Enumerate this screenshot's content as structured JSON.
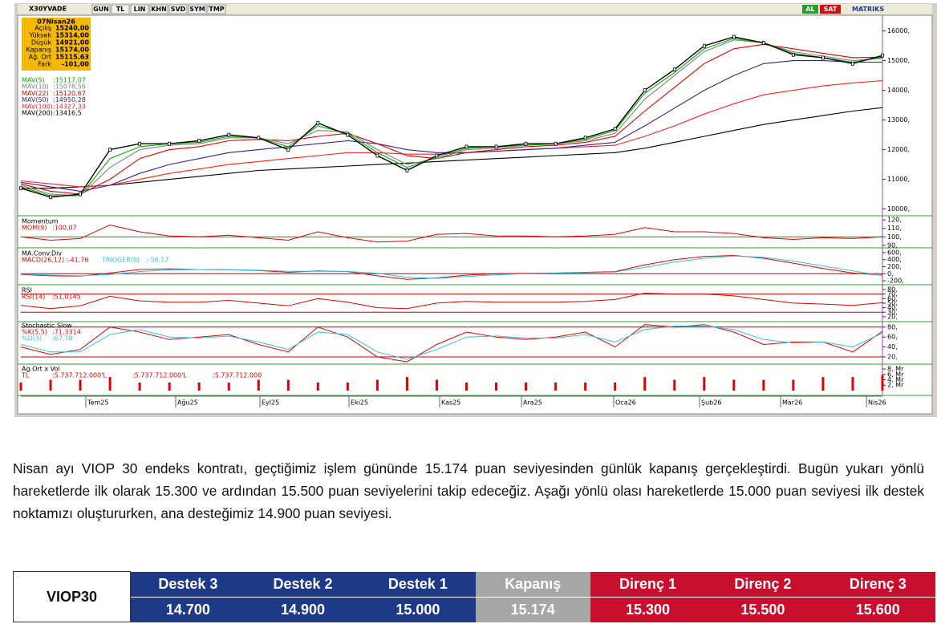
{
  "toolbar": {
    "symbol": "X30YVADE",
    "buttons": [
      "GUN",
      "TL",
      "LIN",
      "KHN",
      "SVD",
      "SYM",
      "TMP"
    ],
    "al": "AL",
    "sat": "SAT",
    "brand": "MATRIKS"
  },
  "info": {
    "date": "07Nisan26",
    "rows": [
      [
        "Açılış",
        "15240,00"
      ],
      [
        "Yüksek",
        "15314,00"
      ],
      [
        "Düşük",
        "14921,00"
      ],
      [
        "Kapanış",
        "15174,00"
      ],
      [
        "Ağ. Ort",
        "15115,63"
      ],
      [
        "Fark",
        "-101,00"
      ]
    ]
  },
  "chart_data": {
    "type": "line",
    "ylim": [
      9800,
      16450
    ],
    "yticks": [
      {
        "value": 16000,
        "label": "16000,"
      },
      {
        "value": 15000,
        "label": "15000,"
      },
      {
        "value": 14000,
        "label": "14000,"
      },
      {
        "value": 13000,
        "label": "13000,"
      },
      {
        "value": 12000,
        "label": "12000,"
      },
      {
        "value": 11000,
        "label": "11000,"
      },
      {
        "value": 10000,
        "label": "10000,"
      }
    ],
    "x_labels": [
      "Tem25",
      "Ağu25",
      "Eyl25",
      "Eki25",
      "Kas25",
      "Ara25",
      "Oca26",
      "Şub26",
      "Mar26",
      "Nis26"
    ],
    "candles": {
      "color": "#000000",
      "values": [
        10700,
        10400,
        10500,
        12000,
        12200,
        12200,
        12300,
        12500,
        12400,
        12000,
        12900,
        12500,
        11800,
        11300,
        11800,
        12100,
        12100,
        12200,
        12200,
        12400,
        12700,
        14000,
        14700,
        15500,
        15800,
        15600,
        15200,
        15100,
        14900,
        15174
      ]
    },
    "series": [
      {
        "name": "MAV(5)",
        "value_label": ":15117,07",
        "color": "#00b000",
        "values": [
          10750,
          10450,
          10450,
          11700,
          12100,
          12200,
          12250,
          12450,
          12400,
          12100,
          12800,
          12550,
          11900,
          11400,
          11750,
          12050,
          12100,
          12150,
          12200,
          12350,
          12650,
          13900,
          14600,
          15400,
          15750,
          15600,
          15250,
          15100,
          14950,
          15117
        ]
      },
      {
        "name": "MAV(10)",
        "value_label": ":15078,56",
        "color": "#808080",
        "values": [
          10800,
          10500,
          10450,
          11400,
          12000,
          12150,
          12200,
          12400,
          12400,
          12200,
          12650,
          12600,
          12000,
          11500,
          11700,
          12000,
          12050,
          12150,
          12200,
          12300,
          12550,
          13700,
          14500,
          15300,
          15700,
          15600,
          15300,
          15150,
          15000,
          15079
        ]
      },
      {
        "name": "MAV(22)",
        "value_label": ":15120,67",
        "color": "#e00000",
        "values": [
          10850,
          10600,
          10500,
          11000,
          11700,
          12000,
          12100,
          12300,
          12350,
          12300,
          12450,
          12550,
          12200,
          11800,
          11700,
          11900,
          12000,
          12100,
          12150,
          12250,
          12450,
          13300,
          14100,
          14900,
          15400,
          15550,
          15400,
          15250,
          15100,
          15121
        ]
      },
      {
        "name": "MAV(50)",
        "value_label": ":14950,28",
        "color": "#3a1f8f",
        "values": [
          10900,
          10750,
          10600,
          10800,
          11200,
          11500,
          11700,
          11900,
          12000,
          12100,
          12200,
          12300,
          12200,
          12000,
          11900,
          11900,
          11950,
          12000,
          12050,
          12150,
          12250,
          12800,
          13400,
          14000,
          14500,
          14900,
          15000,
          15000,
          14950,
          14950
        ]
      },
      {
        "name": "MAV(100)",
        "value_label": ":14327,33",
        "color": "#ff2020",
        "values": [
          10950,
          10850,
          10750,
          10800,
          11000,
          11200,
          11350,
          11500,
          11600,
          11700,
          11800,
          11900,
          11900,
          11850,
          11850,
          11900,
          11950,
          12000,
          12050,
          12100,
          12150,
          12450,
          12800,
          13200,
          13550,
          13850,
          14000,
          14150,
          14250,
          14327
        ]
      },
      {
        "name": "MAV(200)",
        "value_label": ":13416,5",
        "color": "#000000",
        "values": [
          10700,
          10700,
          10750,
          10800,
          10900,
          11000,
          11100,
          11200,
          11300,
          11350,
          11400,
          11450,
          11500,
          11550,
          11600,
          11650,
          11700,
          11750,
          11800,
          11850,
          11900,
          12050,
          12250,
          12450,
          12650,
          12850,
          13000,
          13150,
          13300,
          13417
        ]
      }
    ],
    "panels": [
      {
        "title": "Momentum",
        "kind": "line",
        "ylim": [
          88,
          123
        ],
        "levels": [
          100
        ],
        "level_color": "#00a000",
        "yticks": [
          {
            "value": 120,
            "label": "120,"
          },
          {
            "value": 110,
            "label": "110,"
          },
          {
            "value": 100,
            "label": "100,"
          },
          {
            "value": 90,
            "label": "90,"
          }
        ],
        "series": [
          {
            "name": "MOM(9)",
            "value_label": ":100,07",
            "color": "#e00000",
            "values": [
              100,
              96,
              98,
              114,
              106,
              101,
              100,
              102,
              99,
              96,
              106,
              99,
              94,
              95,
              103,
              104,
              101,
              101,
              100,
              101,
              103,
              111,
              106,
              106,
              104,
              99,
              97,
              99,
              98,
              100.07
            ]
          }
        ]
      },
      {
        "title": "MA.Conv.Div",
        "kind": "line",
        "ylim": [
          -290,
          690
        ],
        "levels": [
          0
        ],
        "level_color": "#c00000",
        "yticks": [
          {
            "value": 600,
            "label": "600,"
          },
          {
            "value": 400,
            "label": "400,"
          },
          {
            "value": 200,
            "label": "200,"
          },
          {
            "value": 0,
            "label": "0,"
          },
          {
            "value": -200,
            "label": "-200,"
          }
        ],
        "series": [
          {
            "name": "MACD(26,12)",
            "value_label": ":-41,76",
            "color": "#e00000",
            "values": [
              -20,
              -60,
              -70,
              20,
              120,
              140,
              120,
              110,
              90,
              40,
              80,
              60,
              -60,
              -160,
              -120,
              -40,
              0,
              10,
              20,
              40,
              60,
              250,
              400,
              490,
              520,
              440,
              300,
              150,
              20,
              -41.76
            ]
          },
          {
            "name": "TRIGGER(9)",
            "value_label": ":-56,17",
            "color": "#33c0e0",
            "values": [
              -10,
              -40,
              -60,
              -20,
              60,
              110,
              120,
              115,
              100,
              70,
              70,
              65,
              10,
              -100,
              -130,
              -80,
              -30,
              0,
              15,
              30,
              50,
              180,
              330,
              440,
              500,
              470,
              360,
              220,
              80,
              -56.17
            ]
          }
        ]
      },
      {
        "title": "RSI",
        "kind": "line",
        "ylim": [
          11,
          87
        ],
        "levels": [
          70,
          30
        ],
        "level_color": "#c00000",
        "yticks": [
          {
            "value": 80,
            "label": "80,"
          },
          {
            "value": 70,
            "label": "70,"
          },
          {
            "value": 60,
            "label": "60,"
          },
          {
            "value": 50,
            "label": "50,"
          },
          {
            "value": 40,
            "label": "40,"
          },
          {
            "value": 30,
            "label": "30,"
          },
          {
            "value": 20,
            "label": "20,"
          }
        ],
        "series": [
          {
            "name": "RSI(14)",
            "value_label": ":51,0145",
            "color": "#e00000",
            "values": [
              45,
              38,
              44,
              65,
              55,
              52,
              52,
              56,
              50,
              44,
              60,
              52,
              40,
              38,
              50,
              54,
              52,
              52,
              52,
              54,
              58,
              72,
              70,
              70,
              66,
              58,
              50,
              48,
              45,
              51.0145
            ]
          }
        ]
      },
      {
        "title": "Stochastic Slow",
        "kind": "line",
        "ylim": [
          7,
          91
        ],
        "levels": [
          80,
          20
        ],
        "level_color": "#c00000",
        "yticks": [
          {
            "value": 80,
            "label": "80,"
          },
          {
            "value": 60,
            "label": "60,"
          },
          {
            "value": 40,
            "label": "40,"
          },
          {
            "value": 20,
            "label": "20,"
          }
        ],
        "series": [
          {
            "name": "%K(5,5)",
            "value_label": ":71,3314",
            "color": "#e00000",
            "values": [
              40,
              25,
              35,
              80,
              70,
              55,
              60,
              65,
              45,
              30,
              80,
              60,
              20,
              10,
              45,
              70,
              60,
              55,
              60,
              70,
              40,
              85,
              80,
              85,
              70,
              45,
              50,
              50,
              30,
              71.3314
            ]
          },
          {
            "name": "%D(3)",
            "value_label": ":67,78",
            "color": "#33c0e0",
            "values": [
              45,
              30,
              30,
              65,
              75,
              60,
              58,
              62,
              50,
              35,
              70,
              65,
              30,
              15,
              35,
              60,
              62,
              58,
              58,
              65,
              50,
              75,
              82,
              82,
              75,
              55,
              48,
              50,
              40,
              67.78
            ]
          }
        ]
      },
      {
        "title": "Ag.Ort x Vol",
        "kind": "bar",
        "ylim": [
          -1.5,
          9.5
        ],
        "levels": [],
        "level_color": "#c00000",
        "yticks": [
          {
            "value": 8,
            "label": "8, Mr"
          },
          {
            "value": 6,
            "label": "6, Mr"
          },
          {
            "value": 4,
            "label": "4, Mr"
          },
          {
            "value": 2,
            "label": "2, Mr"
          }
        ],
        "extra_labels": [
          ":5.737.712.000'L",
          ":5.737.712.000"
        ],
        "series": [
          {
            "name": "TL",
            "value_label": ":5.737.712.000'L",
            "color": "#e00000",
            "values": [
              3,
              4,
              4,
              5,
              3,
              3,
              3,
              3,
              4,
              4,
              3,
              3,
              4,
              5,
              4,
              3,
              3,
              3,
              3,
              3,
              3,
              5,
              4,
              5,
              4,
              4,
              4,
              5,
              5,
              5.737712
            ]
          }
        ]
      }
    ]
  },
  "paragraph": "Nisan ayı VIOP 30 endeks kontratı, geçtiğimiz işlem gününde 15.174 puan seviyesinden günlük kapanış gerçekleştirdi. Bugün yukarı yönlü hareketlerde ilk olarak 15.300 ve ardından 15.500 puan seviyelerini takip edeceğiz. Aşağı yönlü olası hareketlerde 15.000 puan seviyesi ilk destek noktamızı oluştururken, ana desteğimiz 14.900 puan seviyesi.",
  "table": {
    "corner": "VIOP30",
    "headers": [
      "Destek 3",
      "Destek 2",
      "Destek 1",
      "Kapanış",
      "Direnç 1",
      "Direnç 2",
      "Direnç 3"
    ],
    "values": [
      "14.700",
      "14.900",
      "15.000",
      "15.174",
      "15.300",
      "15.500",
      "15.600"
    ]
  }
}
